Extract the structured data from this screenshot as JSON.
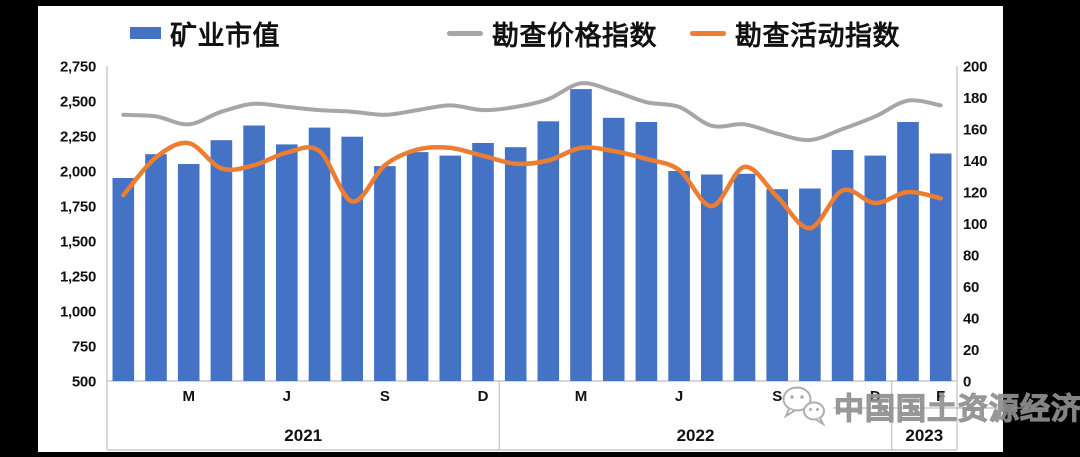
{
  "legend": {
    "items": [
      {
        "label": "矿业市值",
        "type": "bar",
        "color": "#4472C4"
      },
      {
        "label": "勘查价格指数",
        "type": "line",
        "color": "#A6A6A6"
      },
      {
        "label": "勘查活动指数",
        "type": "line",
        "color": "#ED7D31"
      }
    ]
  },
  "watermark": {
    "icon": "wechat-icon",
    "text": "中国国土资源经济"
  },
  "chart_data": {
    "type": "bar+line combo",
    "legend_position": "top",
    "grid": false,
    "x": [
      "2021-01",
      "2021-02",
      "2021-03",
      "2021-04",
      "2021-05",
      "2021-06",
      "2021-07",
      "2021-08",
      "2021-09",
      "2021-10",
      "2021-11",
      "2021-12",
      "2022-01",
      "2022-02",
      "2022-03",
      "2022-04",
      "2022-05",
      "2022-06",
      "2022-07",
      "2022-08",
      "2022-09",
      "2022-10",
      "2022-11",
      "2022-12",
      "2023-01",
      "2023-02"
    ],
    "x_ticks": [
      {
        "label": "M",
        "index": 2
      },
      {
        "label": "J",
        "index": 5
      },
      {
        "label": "S",
        "index": 8
      },
      {
        "label": "D",
        "index": 11
      },
      {
        "label": "M",
        "index": 14
      },
      {
        "label": "J",
        "index": 17
      },
      {
        "label": "S",
        "index": 20
      },
      {
        "label": "D",
        "index": 23
      },
      {
        "label": "F",
        "index": 25
      }
    ],
    "year_groups": [
      {
        "label": "2021",
        "start": 0,
        "end": 11
      },
      {
        "label": "2022",
        "start": 12,
        "end": 23
      },
      {
        "label": "2023",
        "start": 24,
        "end": 25
      }
    ],
    "series": [
      {
        "name": "矿业市值",
        "type": "bar",
        "axis": "left",
        "color": "#4472C4",
        "values": [
          1950,
          2120,
          2050,
          2220,
          2325,
          2190,
          2310,
          2245,
          2035,
          2135,
          2110,
          2200,
          2170,
          2355,
          2585,
          2380,
          2350,
          2000,
          1975,
          1980,
          1870,
          1875,
          2150,
          2110,
          2350,
          2125
        ]
      },
      {
        "name": "勘查价格指数",
        "type": "line",
        "axis": "right",
        "color": "#A6A6A6",
        "values": [
          169,
          168,
          163,
          171,
          176,
          174,
          172,
          171,
          169,
          172,
          175,
          172,
          174,
          179,
          189,
          184,
          177,
          174,
          162,
          163,
          157,
          153,
          160,
          168,
          178,
          175
        ]
      },
      {
        "name": "勘查活动指数",
        "type": "line",
        "axis": "right",
        "color": "#ED7D31",
        "values": [
          118,
          142,
          151,
          135,
          137,
          145,
          146,
          114,
          137,
          147,
          148,
          143,
          138,
          140,
          148,
          146,
          141,
          134,
          111,
          136,
          117,
          97,
          121,
          113,
          120,
          116
        ]
      }
    ],
    "left_axis": {
      "min": 500,
      "max": 2750,
      "step": 250,
      "ticks": [
        "2,750",
        "2,500",
        "2,250",
        "2,000",
        "1,750",
        "1,500",
        "1,250",
        "1,000",
        "750",
        "500"
      ]
    },
    "right_axis": {
      "min": 0,
      "max": 200,
      "step": 20,
      "ticks": [
        "200",
        "180",
        "160",
        "140",
        "120",
        "100",
        "80",
        "60",
        "40",
        "20",
        "0"
      ]
    }
  }
}
